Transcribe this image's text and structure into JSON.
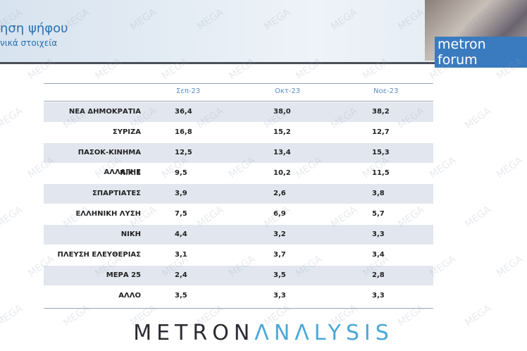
{
  "header": {
    "title": "ηση ψήφου",
    "subtitle": "νικά στοιχεία",
    "logo": "metron forum"
  },
  "watermark": "MEGA",
  "table": {
    "columns": [
      "Σεπ-23",
      "Οκτ-23",
      "Νοε-23"
    ],
    "rows": [
      [
        "ΝΕΑ ΔΗΜΟΚΡΑΤΙΑ",
        "36,4",
        "38,0",
        "38,2"
      ],
      [
        "ΣΥΡΙΖΑ",
        "16,8",
        "15,2",
        "12,7"
      ],
      [
        "ΠΑΣΟΚ-ΚΙΝΗΜΑ ΑΛΛΑΓΗΣ",
        "12,5",
        "13,4",
        "15,3"
      ],
      [
        "Κ.Κ.Ε",
        "9,5",
        "10,2",
        "11,5"
      ],
      [
        "ΣΠΑΡΤΙΑΤΕΣ",
        "3,9",
        "2,6",
        "3,8"
      ],
      [
        "ΕΛΛΗΝΙΚΗ ΛΥΣΗ",
        "7,5",
        "6,9",
        "5,7"
      ],
      [
        "ΝΙΚΗ",
        "4,4",
        "3,2",
        "3,3"
      ],
      [
        "ΠΛΕΥΣΗ ΕΛΕΥΘΕΡΙΑΣ",
        "3,1",
        "3,7",
        "3,4"
      ],
      [
        "ΜΕΡΑ 25",
        "2,4",
        "3,5",
        "2,8"
      ],
      [
        "ΑΛΛΟ",
        "3,5",
        "3,3",
        "3,3"
      ]
    ]
  },
  "footer": {
    "brand_dark": "METRON",
    "brand_light": "ΛNΛLYSIS"
  }
}
